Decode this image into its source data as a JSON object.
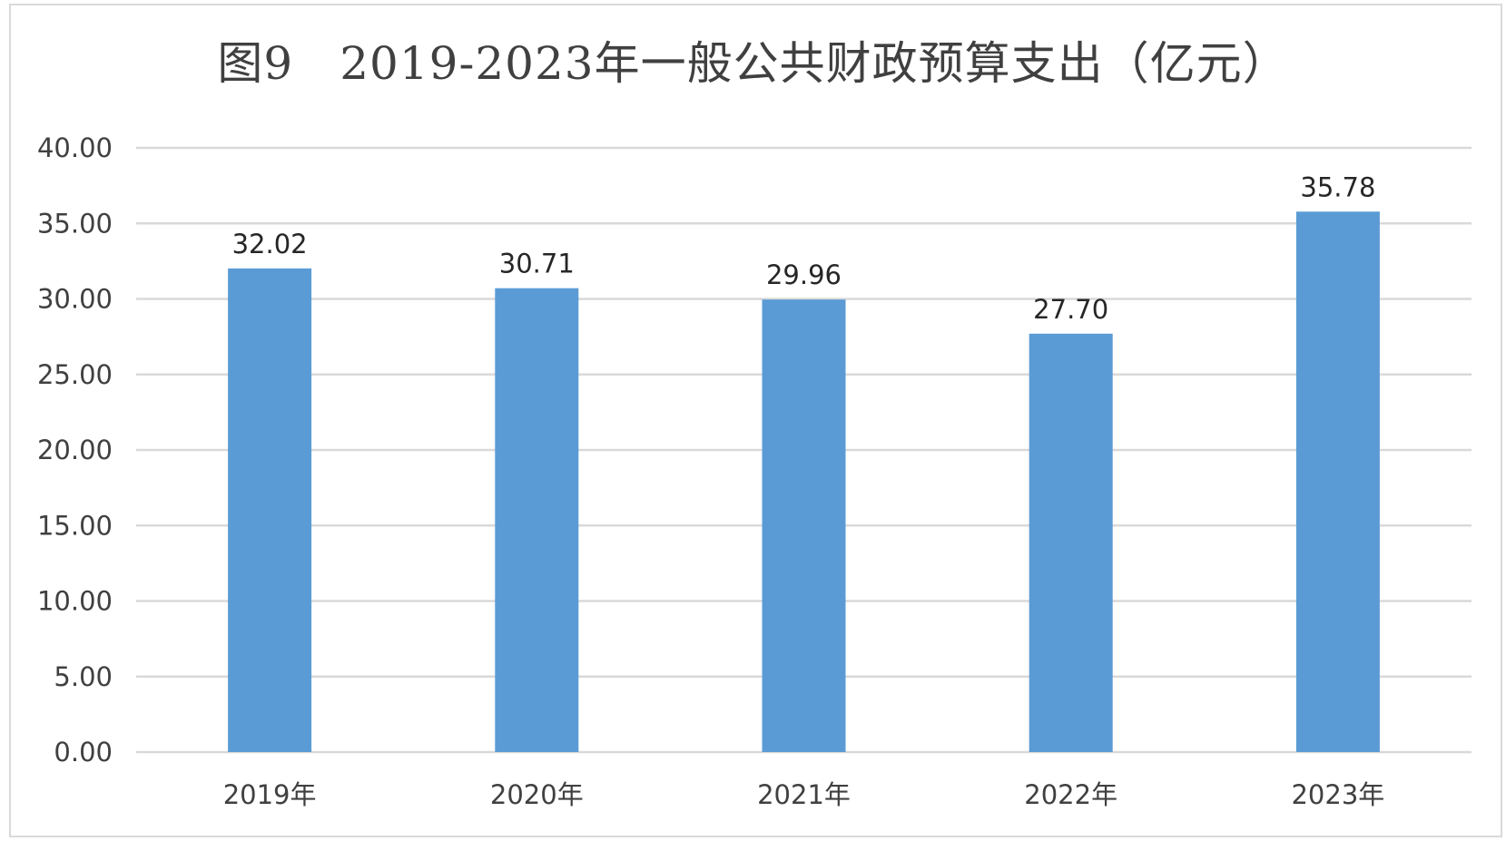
{
  "chart_data": {
    "type": "bar",
    "title": "图9　2019-2023年一般公共财政预算支出（亿元）",
    "categories": [
      "2019年",
      "2020年",
      "2021年",
      "2022年",
      "2023年"
    ],
    "values": [
      32.02,
      30.71,
      29.96,
      27.7,
      35.78
    ],
    "value_labels": [
      "32.02",
      "30.71",
      "29.96",
      "27.70",
      "35.78"
    ],
    "y_ticks": [
      "0.00",
      "5.00",
      "10.00",
      "15.00",
      "20.00",
      "25.00",
      "30.00",
      "35.00",
      "40.00"
    ],
    "ylim": [
      0,
      40
    ],
    "xlabel": "",
    "ylabel": "",
    "grid": true,
    "bar_color": "#5b9bd5",
    "grid_color": "#d9d9d9"
  }
}
